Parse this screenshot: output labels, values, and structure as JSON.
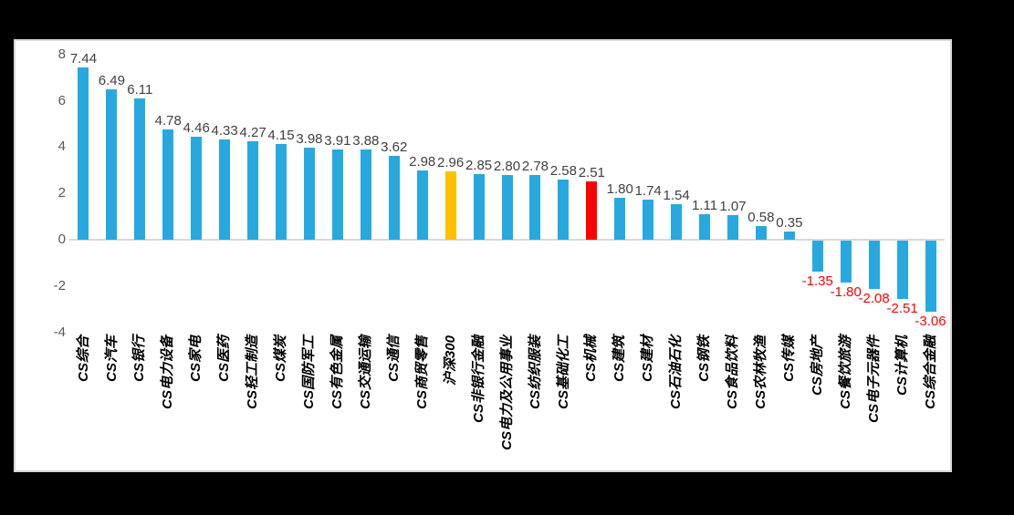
{
  "chart_data": {
    "type": "bar",
    "title": "",
    "xlabel": "",
    "ylabel": "",
    "categories": [
      "CS综合",
      "CS汽车",
      "CS银行",
      "CS电力设备",
      "CS家电",
      "CS医药",
      "CS轻工制造",
      "CS煤炭",
      "CS国防军工",
      "CS有色金属",
      "CS交通运输",
      "CS通信",
      "CS商贸零售",
      "沪深300",
      "CS非银行金融",
      "CS电力及公用事业",
      "CS纺织服装",
      "CS基础化工",
      "CS机械",
      "CS建筑",
      "CS建材",
      "CS石油石化",
      "CS钢铁",
      "CS食品饮料",
      "CS农林牧渔",
      "CS传媒",
      "CS房地产",
      "CS餐饮旅游",
      "CS电子元器件",
      "CS计算机",
      "CS综合金融"
    ],
    "values": [
      7.44,
      6.49,
      6.11,
      4.78,
      4.46,
      4.33,
      4.27,
      4.15,
      3.98,
      3.91,
      3.88,
      3.62,
      2.98,
      2.96,
      2.85,
      2.8,
      2.78,
      2.58,
      2.51,
      1.8,
      1.74,
      1.54,
      1.11,
      1.07,
      0.58,
      0.35,
      -1.35,
      -1.8,
      -2.08,
      -2.51,
      -3.06
    ],
    "highlighted_bars": {
      "13": "#FFC000",
      "18": "#FF0000"
    },
    "ylim": [
      -4,
      8
    ],
    "yticks": [
      8,
      6,
      4,
      2,
      0,
      -2,
      -4
    ],
    "grid": false,
    "legend": false,
    "data_labels_visible": true,
    "colors": {
      "bar_default": "#27A9E0",
      "bar_hs300": "#FFC000",
      "bar_cs_machinery": "#FF0000",
      "value_label_positive": "#404040",
      "value_label_negative": "#FF0000",
      "axis_tick": "#595959",
      "axis_line": "#D9D9D9",
      "category_label": "#000000",
      "plot_background": "#FFFFFF",
      "page_background": "#000000"
    }
  }
}
